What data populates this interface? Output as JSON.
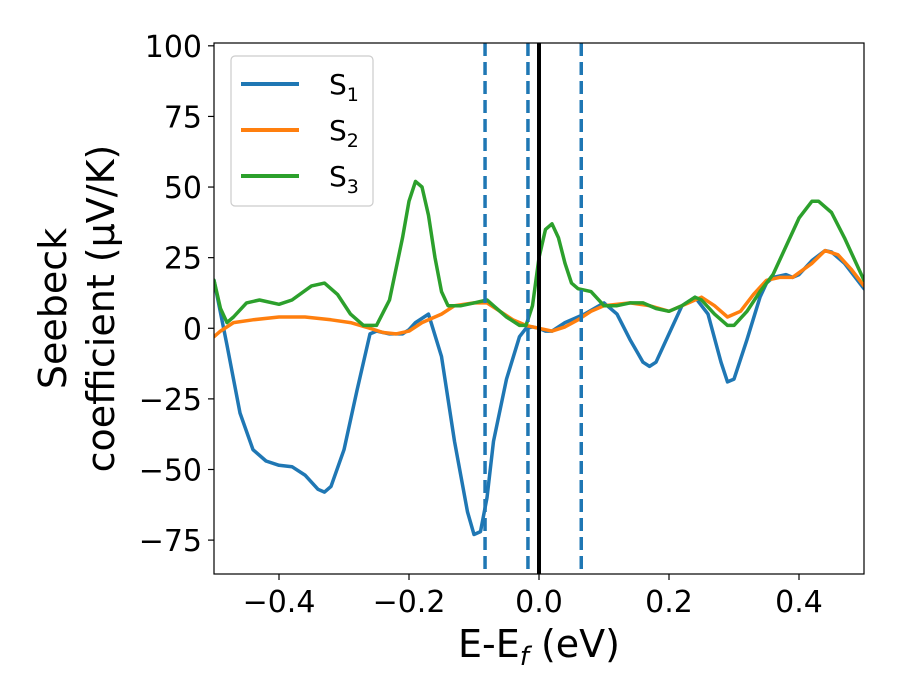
{
  "chart_data": {
    "type": "line",
    "title": "",
    "xlabel_main": "E-E",
    "xlabel_sub": "f",
    "xlabel_unit": " (eV)",
    "ylabel_line1": "Seebeck",
    "ylabel_line2": "coefficient  (μV/K)",
    "xlim": [
      -0.5,
      0.5
    ],
    "ylim": [
      -87,
      101
    ],
    "xticks": [
      -0.4,
      -0.2,
      0.0,
      0.2,
      0.4
    ],
    "xtick_labels": [
      "−0.4",
      "−0.2",
      "0.0",
      "0.2",
      "0.4"
    ],
    "yticks": [
      -75,
      -50,
      -25,
      0,
      25,
      50,
      75,
      100
    ],
    "ytick_labels": [
      "−75",
      "−50",
      "−25",
      "0",
      "25",
      "50",
      "75",
      "100"
    ],
    "legend_position": "top-left",
    "grid": false,
    "vlines": [
      {
        "x": -0.083,
        "style": "dashed",
        "color": "#1f77b4"
      },
      {
        "x": -0.017,
        "style": "dashed",
        "color": "#1f77b4"
      },
      {
        "x": 0.0,
        "style": "solid",
        "color": "#000000"
      },
      {
        "x": 0.065,
        "style": "dashed",
        "color": "#1f77b4"
      }
    ],
    "series": [
      {
        "name": "S",
        "sub": "1",
        "color": "#1f77b4",
        "points": [
          [
            -0.5,
            17
          ],
          [
            -0.48,
            -6
          ],
          [
            -0.46,
            -30
          ],
          [
            -0.44,
            -43
          ],
          [
            -0.42,
            -47
          ],
          [
            -0.4,
            -48.5
          ],
          [
            -0.38,
            -49
          ],
          [
            -0.36,
            -52
          ],
          [
            -0.34,
            -57
          ],
          [
            -0.33,
            -58
          ],
          [
            -0.32,
            -56
          ],
          [
            -0.3,
            -43
          ],
          [
            -0.28,
            -22
          ],
          [
            -0.26,
            -2
          ],
          [
            -0.25,
            -1
          ],
          [
            -0.23,
            -2
          ],
          [
            -0.21,
            -2
          ],
          [
            -0.2,
            -0.5
          ],
          [
            -0.19,
            2
          ],
          [
            -0.17,
            5
          ],
          [
            -0.15,
            -10
          ],
          [
            -0.13,
            -40
          ],
          [
            -0.11,
            -65
          ],
          [
            -0.1,
            -73
          ],
          [
            -0.09,
            -72
          ],
          [
            -0.08,
            -60
          ],
          [
            -0.07,
            -40
          ],
          [
            -0.05,
            -18
          ],
          [
            -0.03,
            -3
          ],
          [
            -0.02,
            0
          ],
          [
            -0.01,
            0.5
          ],
          [
            0.0,
            0
          ],
          [
            0.01,
            -1
          ],
          [
            0.02,
            -1
          ],
          [
            0.04,
            2
          ],
          [
            0.07,
            5
          ],
          [
            0.1,
            9
          ],
          [
            0.12,
            5
          ],
          [
            0.14,
            -4
          ],
          [
            0.16,
            -12
          ],
          [
            0.17,
            -13.5
          ],
          [
            0.18,
            -12
          ],
          [
            0.2,
            -2
          ],
          [
            0.22,
            8
          ],
          [
            0.24,
            11
          ],
          [
            0.26,
            5
          ],
          [
            0.28,
            -12
          ],
          [
            0.29,
            -19
          ],
          [
            0.3,
            -18
          ],
          [
            0.32,
            -4
          ],
          [
            0.34,
            11
          ],
          [
            0.35,
            16
          ],
          [
            0.36,
            18
          ],
          [
            0.38,
            19
          ],
          [
            0.39,
            18
          ],
          [
            0.4,
            19
          ],
          [
            0.42,
            24
          ],
          [
            0.44,
            27.5
          ],
          [
            0.45,
            27
          ],
          [
            0.47,
            23
          ],
          [
            0.5,
            14
          ]
        ]
      },
      {
        "name": "S",
        "sub": "2",
        "color": "#ff7f0e",
        "points": [
          [
            -0.5,
            -3
          ],
          [
            -0.49,
            -1
          ],
          [
            -0.47,
            2
          ],
          [
            -0.44,
            3
          ],
          [
            -0.4,
            4
          ],
          [
            -0.36,
            4
          ],
          [
            -0.32,
            3
          ],
          [
            -0.29,
            2
          ],
          [
            -0.26,
            0
          ],
          [
            -0.24,
            -1.5
          ],
          [
            -0.22,
            -2
          ],
          [
            -0.2,
            -1
          ],
          [
            -0.18,
            2
          ],
          [
            -0.15,
            5
          ],
          [
            -0.13,
            8
          ],
          [
            -0.1,
            9
          ],
          [
            -0.08,
            9
          ],
          [
            -0.06,
            6
          ],
          [
            -0.04,
            3
          ],
          [
            -0.02,
            1
          ],
          [
            0.0,
            0
          ],
          [
            0.02,
            -1
          ],
          [
            0.04,
            0.5
          ],
          [
            0.06,
            3
          ],
          [
            0.08,
            6
          ],
          [
            0.1,
            8
          ],
          [
            0.14,
            9
          ],
          [
            0.17,
            8
          ],
          [
            0.2,
            6
          ],
          [
            0.23,
            9
          ],
          [
            0.25,
            11
          ],
          [
            0.27,
            8
          ],
          [
            0.29,
            4
          ],
          [
            0.31,
            6
          ],
          [
            0.33,
            12
          ],
          [
            0.35,
            17
          ],
          [
            0.37,
            18
          ],
          [
            0.39,
            18
          ],
          [
            0.42,
            23
          ],
          [
            0.44,
            27.5
          ],
          [
            0.46,
            26
          ],
          [
            0.48,
            21
          ],
          [
            0.5,
            15
          ]
        ]
      },
      {
        "name": "S",
        "sub": "3",
        "color": "#2ca02c",
        "points": [
          [
            -0.5,
            17
          ],
          [
            -0.49,
            7
          ],
          [
            -0.48,
            2
          ],
          [
            -0.47,
            4
          ],
          [
            -0.45,
            9
          ],
          [
            -0.43,
            10
          ],
          [
            -0.4,
            8.5
          ],
          [
            -0.38,
            10
          ],
          [
            -0.35,
            15
          ],
          [
            -0.33,
            16
          ],
          [
            -0.31,
            12
          ],
          [
            -0.29,
            5
          ],
          [
            -0.27,
            1
          ],
          [
            -0.25,
            1
          ],
          [
            -0.23,
            10
          ],
          [
            -0.21,
            32
          ],
          [
            -0.2,
            45
          ],
          [
            -0.19,
            52
          ],
          [
            -0.18,
            50
          ],
          [
            -0.17,
            40
          ],
          [
            -0.16,
            25
          ],
          [
            -0.15,
            13
          ],
          [
            -0.14,
            8
          ],
          [
            -0.12,
            8
          ],
          [
            -0.1,
            9
          ],
          [
            -0.08,
            10
          ],
          [
            -0.07,
            8
          ],
          [
            -0.05,
            4
          ],
          [
            -0.03,
            1
          ],
          [
            -0.02,
            1
          ],
          [
            -0.01,
            8
          ],
          [
            0.0,
            25
          ],
          [
            0.01,
            35
          ],
          [
            0.02,
            37
          ],
          [
            0.03,
            32
          ],
          [
            0.04,
            23
          ],
          [
            0.05,
            16
          ],
          [
            0.06,
            14
          ],
          [
            0.08,
            13
          ],
          [
            0.1,
            8
          ],
          [
            0.12,
            8
          ],
          [
            0.14,
            9
          ],
          [
            0.16,
            9
          ],
          [
            0.18,
            7
          ],
          [
            0.2,
            6
          ],
          [
            0.22,
            8
          ],
          [
            0.24,
            11
          ],
          [
            0.25,
            10
          ],
          [
            0.27,
            5
          ],
          [
            0.29,
            1
          ],
          [
            0.3,
            1
          ],
          [
            0.32,
            6
          ],
          [
            0.34,
            13
          ],
          [
            0.36,
            19
          ],
          [
            0.38,
            29
          ],
          [
            0.4,
            39
          ],
          [
            0.42,
            45
          ],
          [
            0.43,
            45
          ],
          [
            0.45,
            41
          ],
          [
            0.47,
            32
          ],
          [
            0.5,
            17
          ]
        ]
      }
    ]
  }
}
